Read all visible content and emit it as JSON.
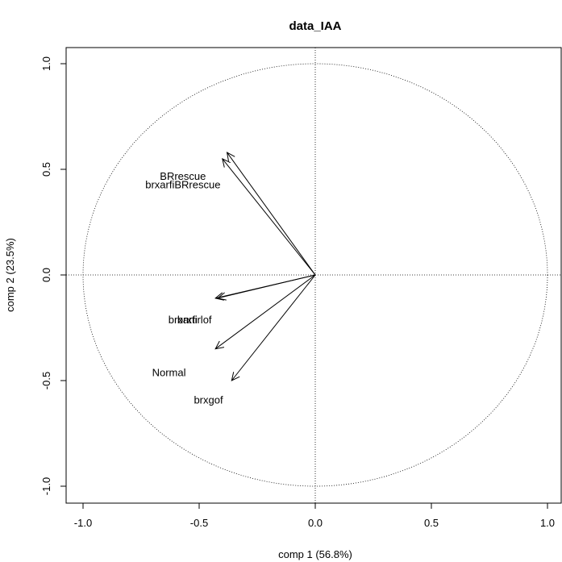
{
  "chart_data": {
    "type": "scatter",
    "title": "data_IAA",
    "xlabel": "comp 1 (56.8%)",
    "ylabel": "comp 2 (23.5%)",
    "xlim": [
      -1.0,
      1.0
    ],
    "ylim": [
      -1.0,
      1.0
    ],
    "xticks": [
      "-1.0",
      "-0.5",
      "0.0",
      "0.5",
      "1.0"
    ],
    "yticks": [
      "-1.0",
      "-0.5",
      "0.0",
      "0.5",
      "1.0"
    ],
    "unit_circle": true,
    "reference_lines": [
      0,
      0
    ],
    "variables": [
      {
        "label": "BRrescue",
        "x": -0.38,
        "y": 0.58,
        "label_x": -0.57,
        "label_y": 0.47
      },
      {
        "label": "brxarfiBRrescue",
        "x": -0.4,
        "y": 0.55,
        "label_x": -0.57,
        "label_y": 0.43
      },
      {
        "label": "brxarfi",
        "x": -0.43,
        "y": -0.11,
        "label_x": -0.57,
        "label_y": -0.21
      },
      {
        "label": "brxtirlof",
        "x": -0.42,
        "y": -0.11,
        "label_x": -0.52,
        "label_y": -0.21
      },
      {
        "label": "Normal",
        "x": -0.43,
        "y": -0.35,
        "label_x": -0.63,
        "label_y": -0.46
      },
      {
        "label": "brxgof",
        "x": -0.36,
        "y": -0.5,
        "label_x": -0.46,
        "label_y": -0.59
      }
    ]
  }
}
